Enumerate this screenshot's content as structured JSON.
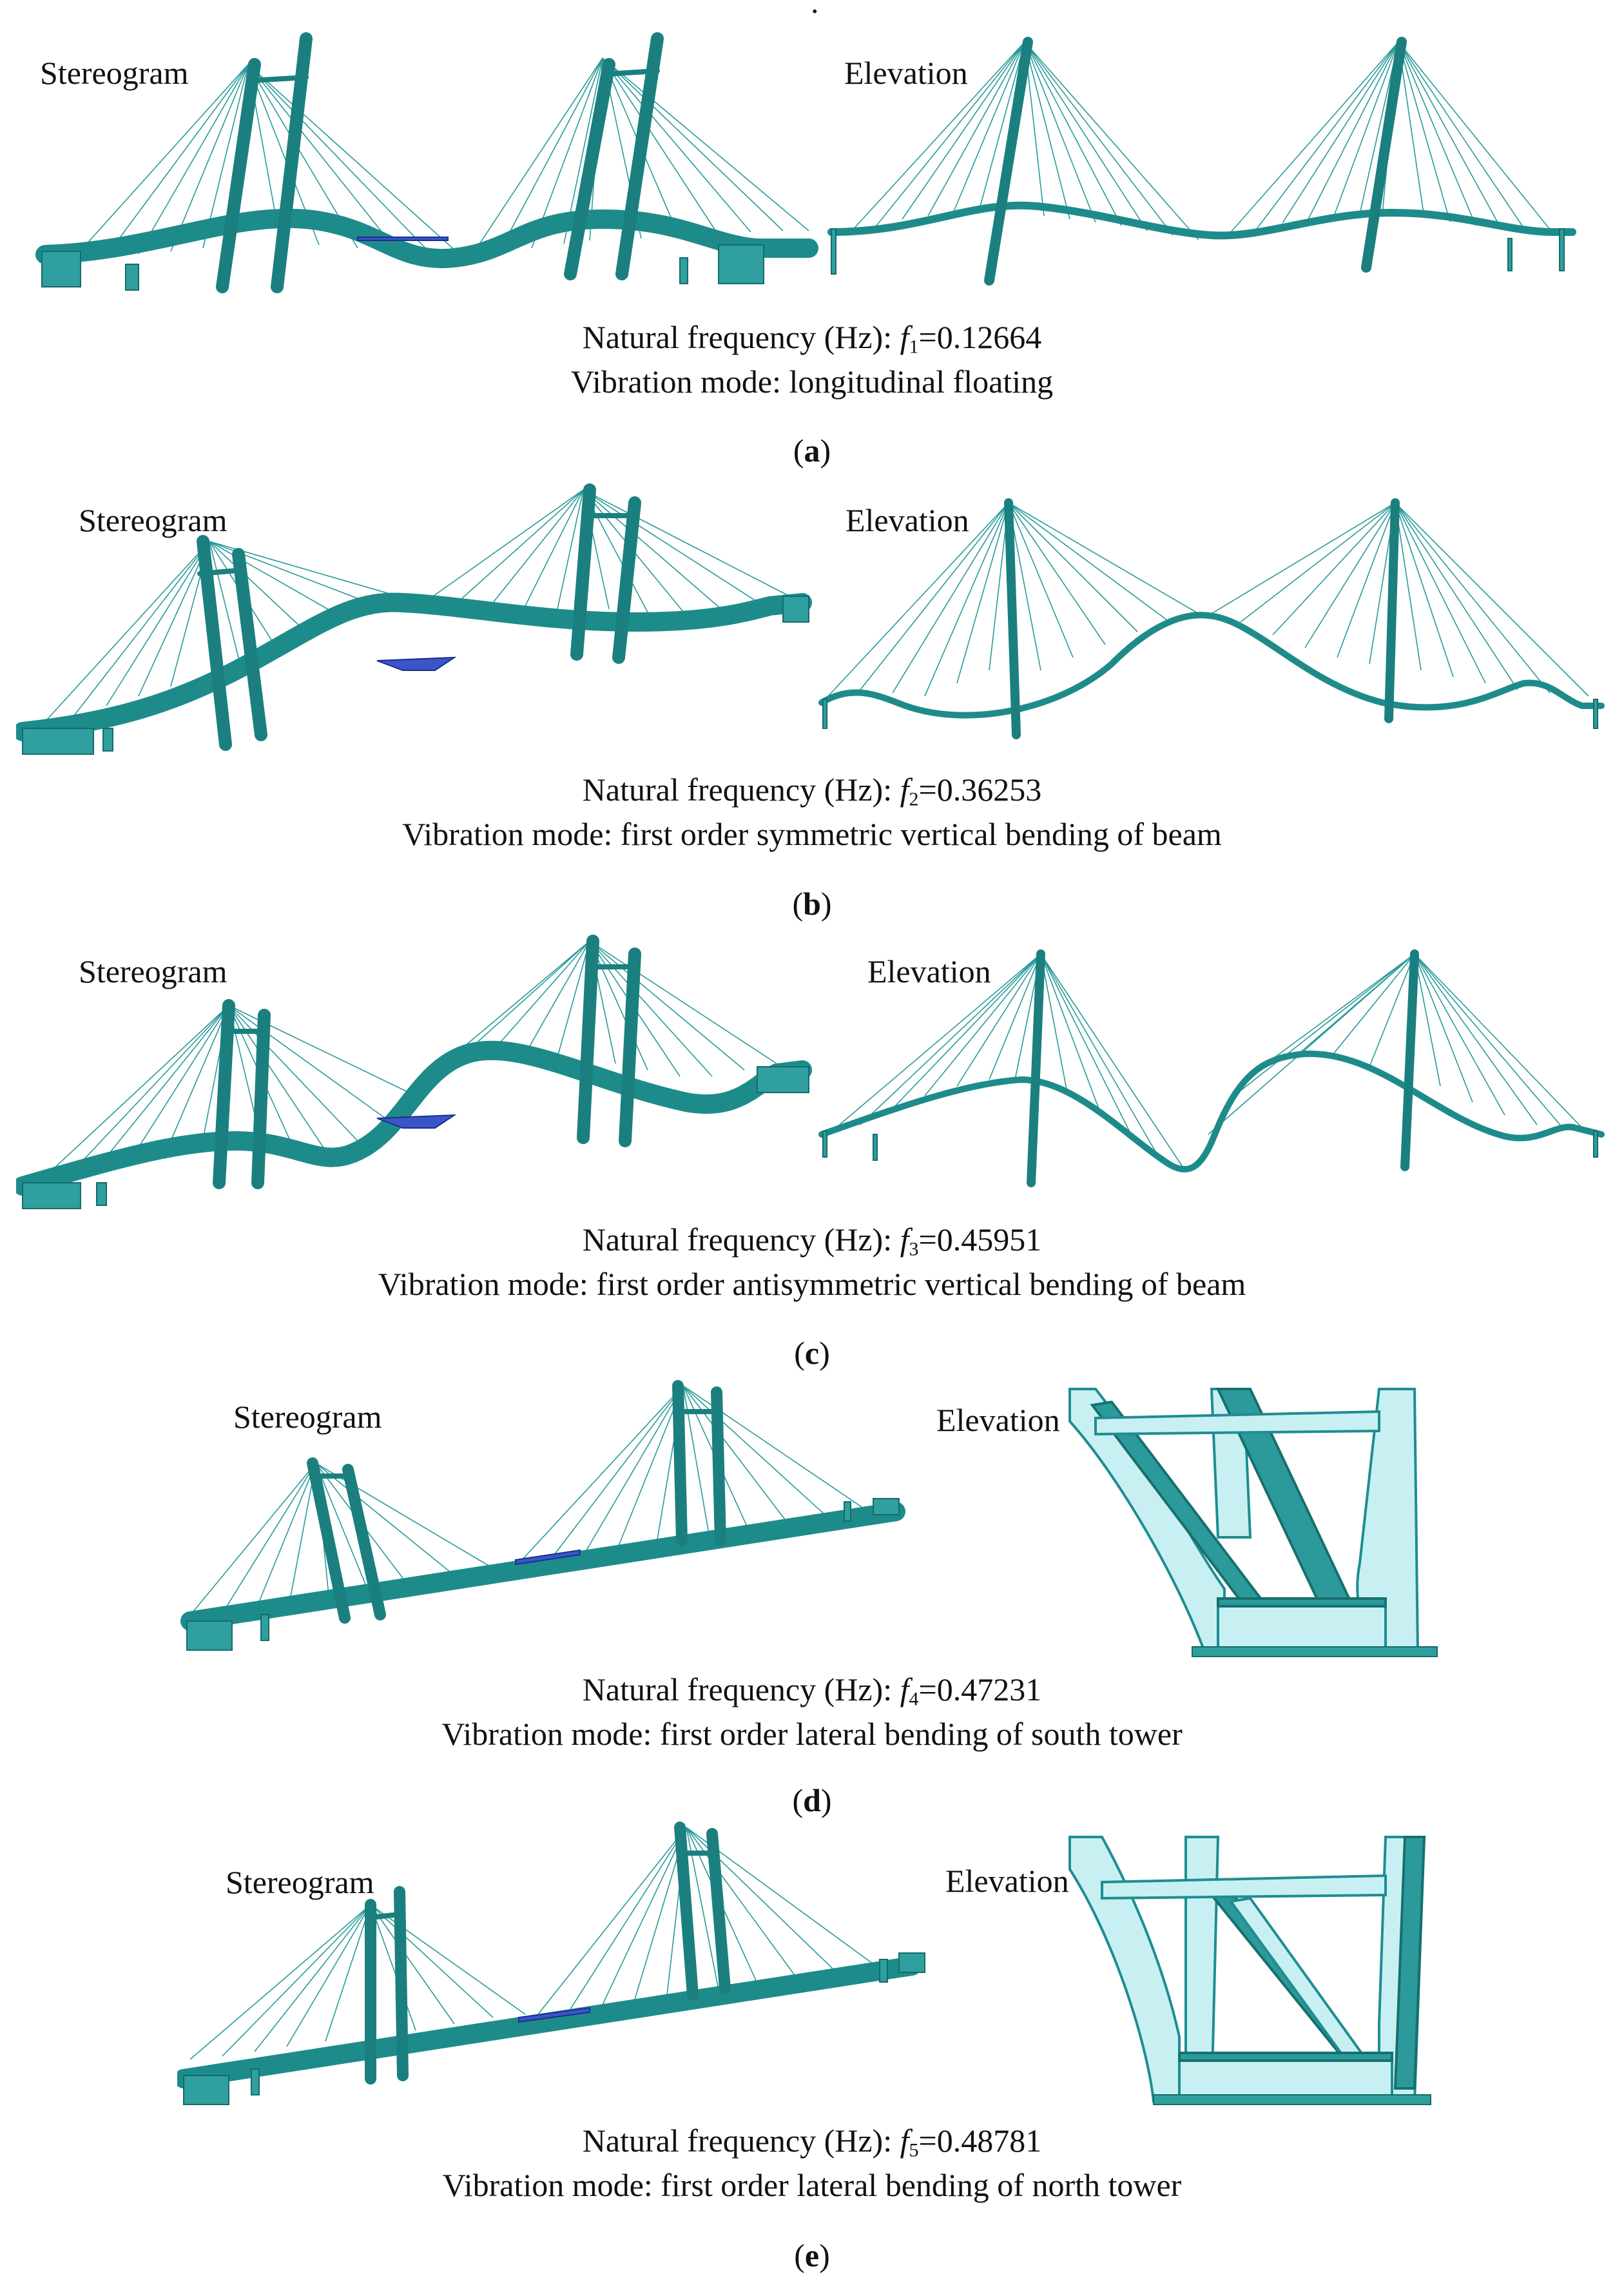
{
  "top_mark": ".",
  "view_labels": {
    "stereogram": "Stereogram",
    "elevation": "Elevation"
  },
  "colors": {
    "structure": "#1e8b8b",
    "highlight": "#3a55c8",
    "tower_light": "#c8f0f2"
  },
  "modes": [
    {
      "label": "a",
      "prefix": "Natural frequency  (Hz): ",
      "symbol": "f",
      "index": "1",
      "value": "0.12664",
      "mode_prefix": "Vibration mode: ",
      "mode_text": "longitudinal  floating"
    },
    {
      "label": "b",
      "prefix": "Natural frequency  (Hz): ",
      "symbol": "f",
      "index": "2",
      "value": "0.36253",
      "mode_prefix": "Vibration mode: ",
      "mode_text": "first  order  symmetric  vertical  bending  of  beam"
    },
    {
      "label": "c",
      "prefix": "Natural frequency  (Hz): ",
      "symbol": "f",
      "index": "3",
      "value": "0.45951",
      "mode_prefix": "Vibration mode: ",
      "mode_text": "first  order  antisymmetric  vertical  bending  of  beam"
    },
    {
      "label": "d",
      "prefix": "Natural frequency  (Hz): ",
      "symbol": "f",
      "index": "4",
      "value": "0.47231",
      "mode_prefix": "Vibration mode: ",
      "mode_text": "first  order  lateral  bending  of  south  tower"
    },
    {
      "label": "e",
      "prefix": "Natural frequency  (Hz): ",
      "symbol": "f",
      "index": "5",
      "value": "0.48781",
      "mode_prefix": "Vibration mode: ",
      "mode_text": "first  order  lateral  bending  of  north  tower"
    }
  ]
}
